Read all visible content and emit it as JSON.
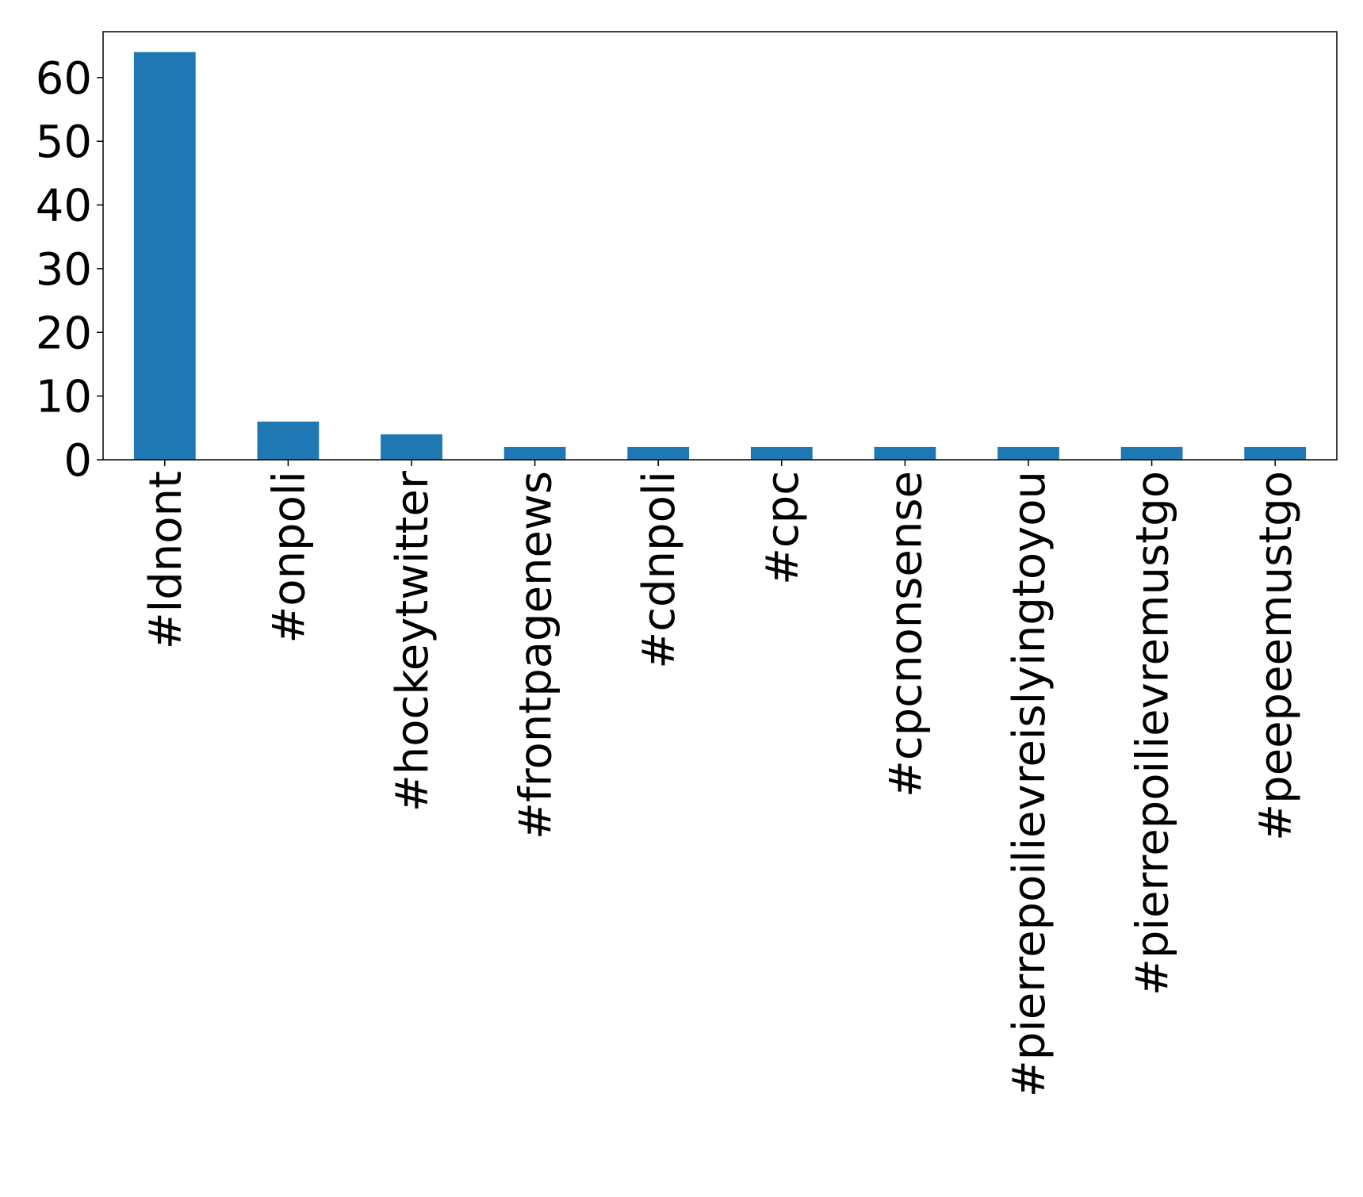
{
  "chart_data": {
    "type": "bar",
    "categories": [
      "#ldnont",
      "#onpoli",
      "#hockeytwitter",
      "#frontpagenews",
      "#cdnpoli",
      "#cpc",
      "#cpcnonsense",
      "#pierrepoilievreislyingtoyou",
      "#pierrepoilievremustgo",
      "#peepeemustgo"
    ],
    "values": [
      64,
      6,
      4,
      2,
      2,
      2,
      2,
      2,
      2,
      2
    ],
    "yticks": [
      0,
      10,
      20,
      30,
      40,
      50,
      60
    ],
    "ylim": [
      0,
      67.2
    ],
    "title": "",
    "xlabel": "",
    "ylabel": "",
    "bar_color": "#1f77b4",
    "grid": false,
    "legend": "none"
  }
}
